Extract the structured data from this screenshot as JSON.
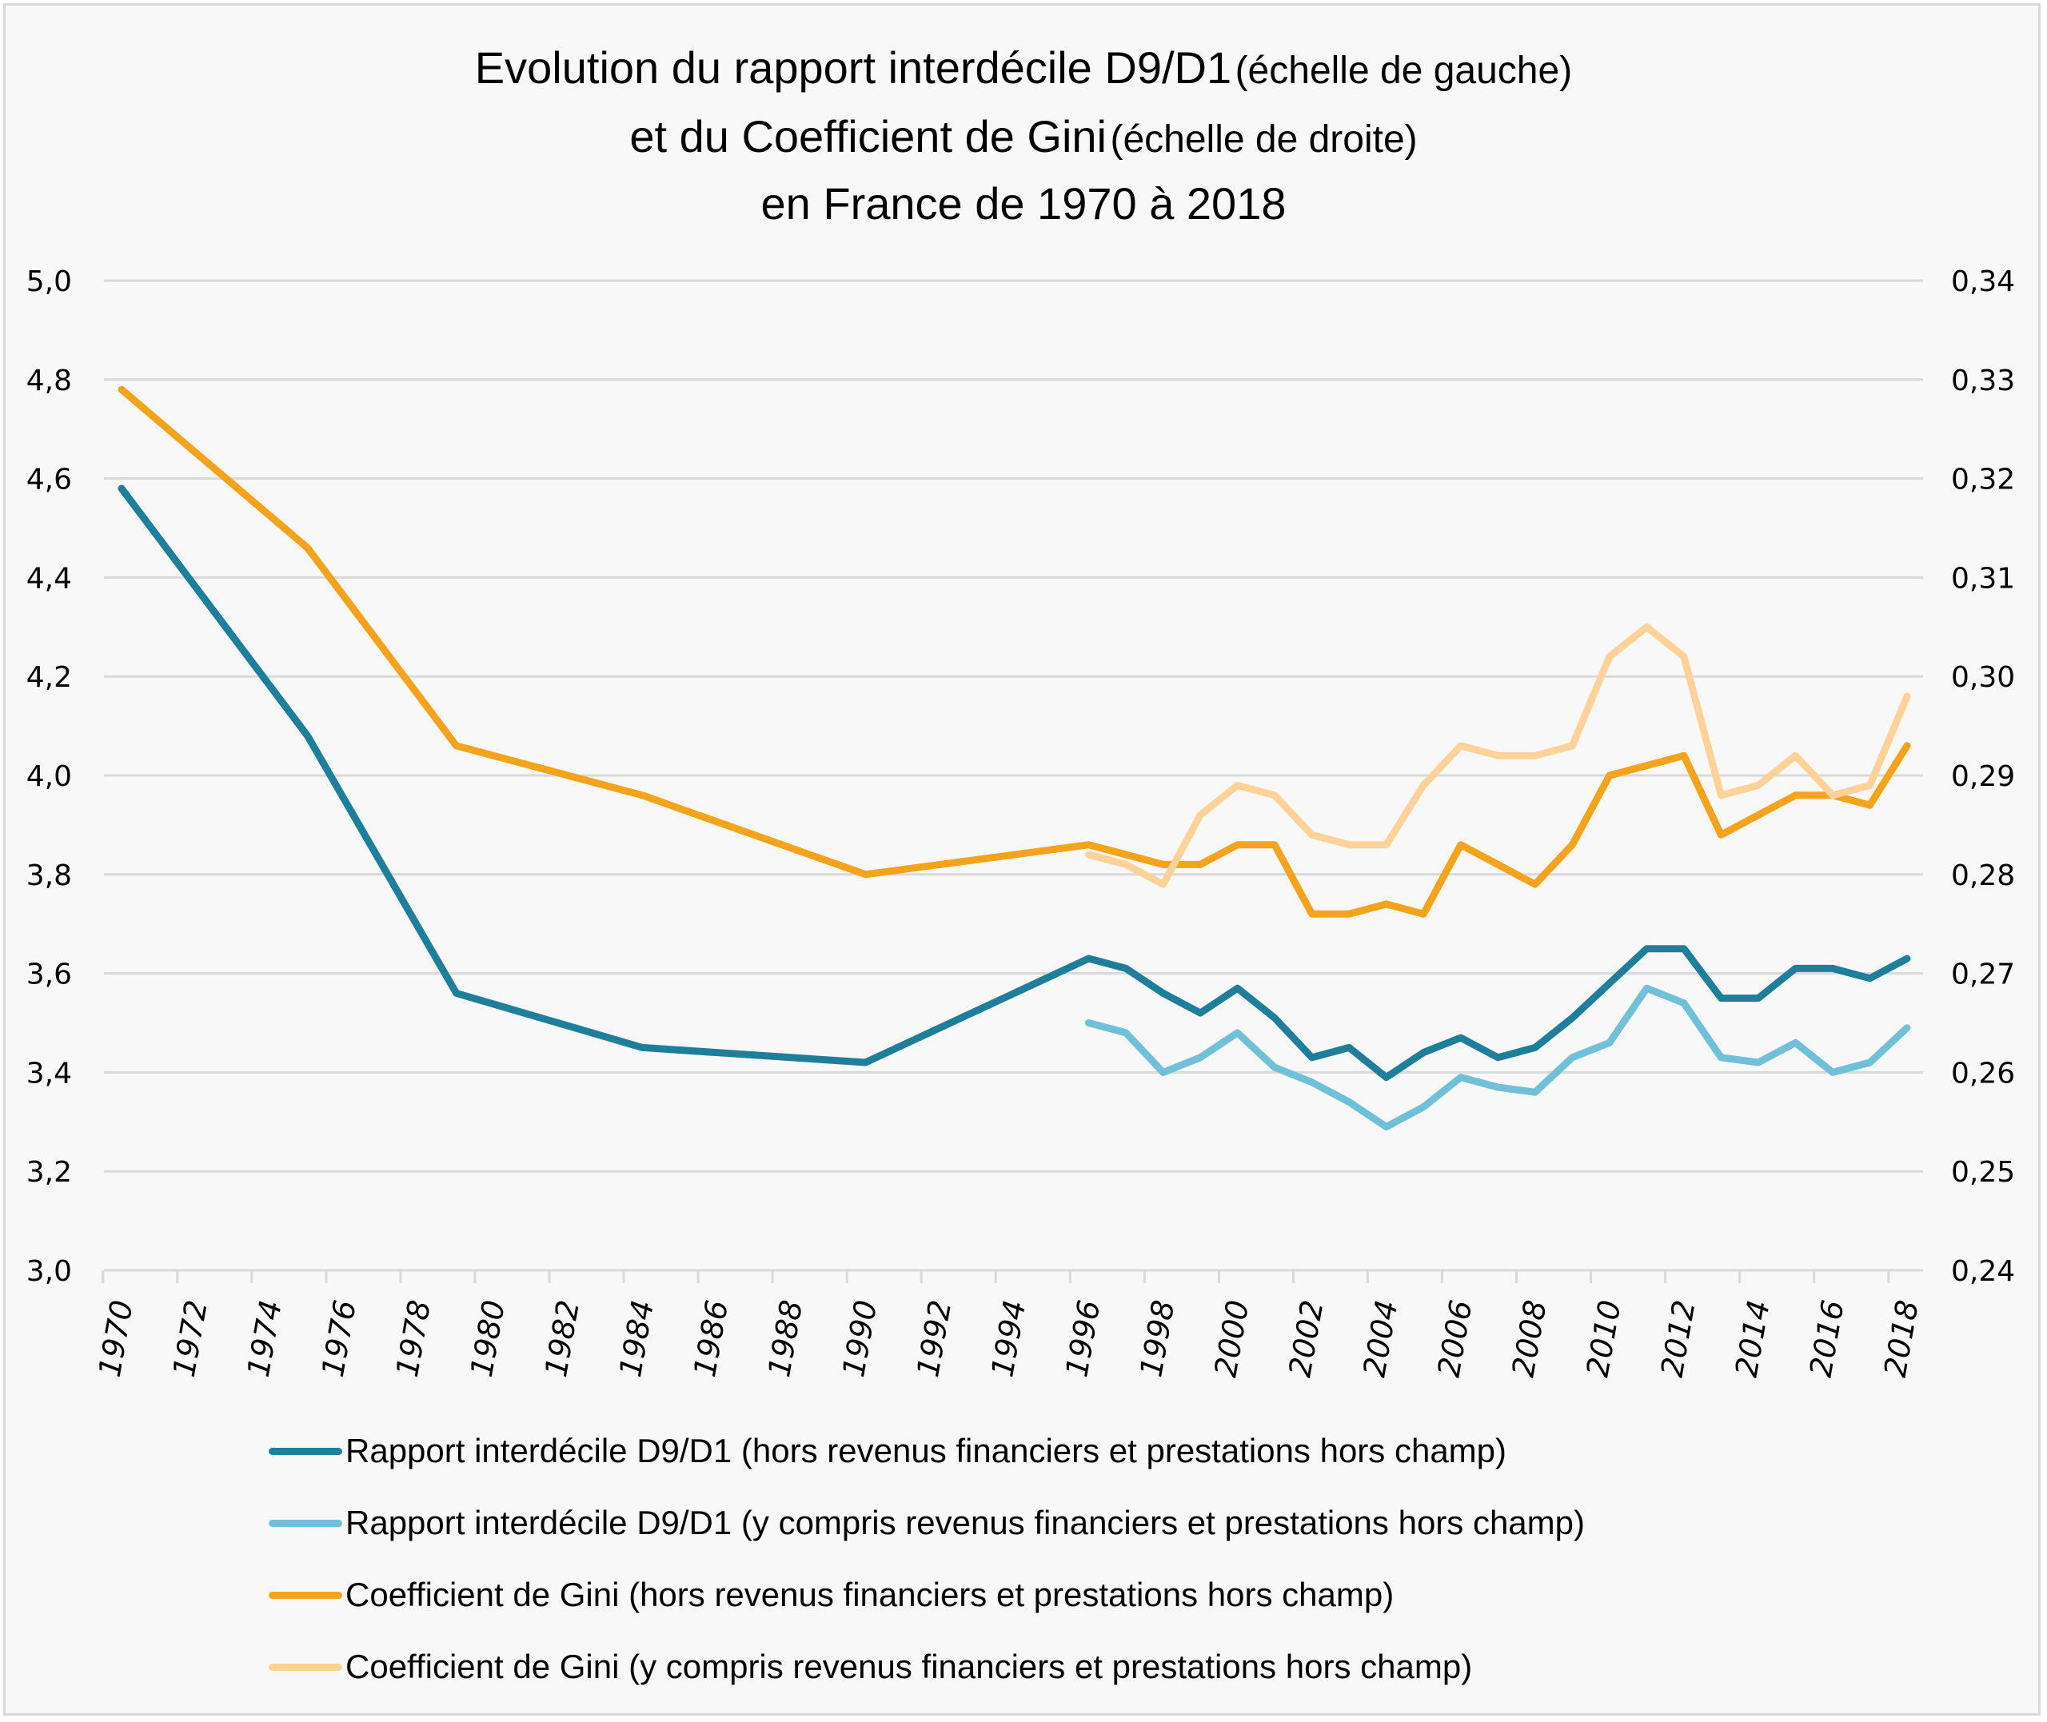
{
  "chart_data": {
    "type": "line",
    "title_lines": [
      {
        "main": "Evolution du rapport interdécile D9/D1",
        "note": "(échelle de gauche)"
      },
      {
        "main": "et du Coefficient de Gini",
        "note": "(échelle de droite)"
      },
      {
        "main": "en France de 1970 à 2018",
        "note": ""
      }
    ],
    "x_ticks": [
      "1970",
      "1972",
      "1974",
      "1976",
      "1978",
      "1980",
      "1982",
      "1984",
      "1986",
      "1988",
      "1990",
      "1992",
      "1994",
      "1996",
      "1998",
      "2000",
      "2002",
      "2004",
      "2006",
      "2008",
      "2010",
      "2012",
      "2014",
      "2016",
      "2018"
    ],
    "xlim": [
      1970,
      2018
    ],
    "y_left": {
      "ylim": [
        3.0,
        5.0
      ],
      "ticks": [
        "3,0",
        "3,2",
        "3,4",
        "3,6",
        "3,8",
        "4,0",
        "4,2",
        "4,4",
        "4,6",
        "4,8",
        "5,0"
      ]
    },
    "y_right": {
      "ylim": [
        0.24,
        0.34
      ],
      "ticks": [
        "0,24",
        "0,25",
        "0,26",
        "0,27",
        "0,28",
        "0,29",
        "0,30",
        "0,31",
        "0,32",
        "0,33",
        "0,34"
      ]
    },
    "grid": true,
    "legend_position": "bottom",
    "series": [
      {
        "name": "Rapport interdécile D9/D1 (hors revenus financiers et prestations hors champ)",
        "axis": "left",
        "color": "#1f7f9a",
        "x": [
          1970,
          1975,
          1979,
          1984,
          1990,
          1996,
          1997,
          1998,
          1999,
          2000,
          2001,
          2002,
          2003,
          2004,
          2005,
          2006,
          2007,
          2008,
          2009,
          2010,
          2011,
          2012,
          2013,
          2014,
          2015,
          2016,
          2017,
          2018
        ],
        "values": [
          4.58,
          4.08,
          3.56,
          3.45,
          3.42,
          3.63,
          3.61,
          3.56,
          3.52,
          3.57,
          3.51,
          3.43,
          3.45,
          3.39,
          3.44,
          3.47,
          3.43,
          3.45,
          3.51,
          3.58,
          3.65,
          3.65,
          3.55,
          3.55,
          3.61,
          3.61,
          3.59,
          3.63
        ]
      },
      {
        "name": "Rapport interdécile D9/D1 (y compris revenus financiers et prestations hors champ)",
        "axis": "left",
        "color": "#70c0d8",
        "x": [
          1996,
          1997,
          1998,
          1999,
          2000,
          2001,
          2002,
          2003,
          2004,
          2005,
          2006,
          2007,
          2008,
          2009,
          2010,
          2011,
          2012,
          2013,
          2014,
          2015,
          2016,
          2017,
          2018
        ],
        "values": [
          3.5,
          3.48,
          3.4,
          3.43,
          3.48,
          3.41,
          3.38,
          3.34,
          3.29,
          3.33,
          3.39,
          3.37,
          3.36,
          3.43,
          3.46,
          3.57,
          3.54,
          3.43,
          3.42,
          3.46,
          3.4,
          3.42,
          3.49
        ]
      },
      {
        "name": "Coefficient de Gini (hors revenus financiers et prestations hors champ)",
        "axis": "right",
        "color": "#f5a21d",
        "x": [
          1970,
          1975,
          1979,
          1984,
          1990,
          1996,
          1997,
          1998,
          1999,
          2000,
          2001,
          2002,
          2003,
          2004,
          2005,
          2006,
          2007,
          2008,
          2009,
          2010,
          2011,
          2012,
          2013,
          2014,
          2015,
          2016,
          2017,
          2018
        ],
        "values": [
          0.329,
          0.313,
          0.293,
          0.288,
          0.28,
          0.283,
          0.282,
          0.281,
          0.281,
          0.283,
          0.283,
          0.276,
          0.276,
          0.277,
          0.276,
          0.283,
          0.281,
          0.279,
          0.283,
          0.29,
          0.291,
          0.292,
          0.284,
          0.286,
          0.288,
          0.288,
          0.287,
          0.293
        ]
      },
      {
        "name": "Coefficient de Gini (y compris revenus financiers et prestations hors champ)",
        "axis": "right",
        "color": "#ffd299",
        "x": [
          1996,
          1997,
          1998,
          1999,
          2000,
          2001,
          2002,
          2003,
          2004,
          2005,
          2006,
          2007,
          2008,
          2009,
          2010,
          2011,
          2012,
          2013,
          2014,
          2015,
          2016,
          2017,
          2018
        ],
        "values": [
          0.282,
          0.281,
          0.279,
          0.286,
          0.289,
          0.288,
          0.284,
          0.283,
          0.283,
          0.289,
          0.293,
          0.292,
          0.292,
          0.293,
          0.302,
          0.305,
          0.302,
          0.288,
          0.289,
          0.292,
          0.288,
          0.289,
          0.298
        ]
      }
    ]
  }
}
